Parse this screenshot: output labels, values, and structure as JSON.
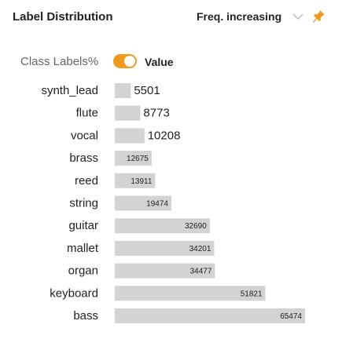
{
  "header": {
    "title": "Label Distribution",
    "sort_label": "Freq. increasing",
    "chevron_icon": "chevron-down-icon",
    "pin_icon": "pin-icon"
  },
  "controls": {
    "left_label": "Class Labels%",
    "toggle_on": true,
    "right_label": "Value",
    "accent_color": "#f29a1f"
  },
  "chart_data": {
    "type": "bar",
    "orientation": "horizontal",
    "categories": [
      "synth_lead",
      "flute",
      "vocal",
      "brass",
      "reed",
      "string",
      "guitar",
      "mallet",
      "organ",
      "keyboard",
      "bass"
    ],
    "values": [
      5501,
      8773,
      10208,
      12675,
      13911,
      19474,
      32690,
      34201,
      34477,
      51821,
      65474
    ],
    "bar_color": "#d3d3d3",
    "title": "",
    "xlabel": "",
    "ylabel": ""
  }
}
